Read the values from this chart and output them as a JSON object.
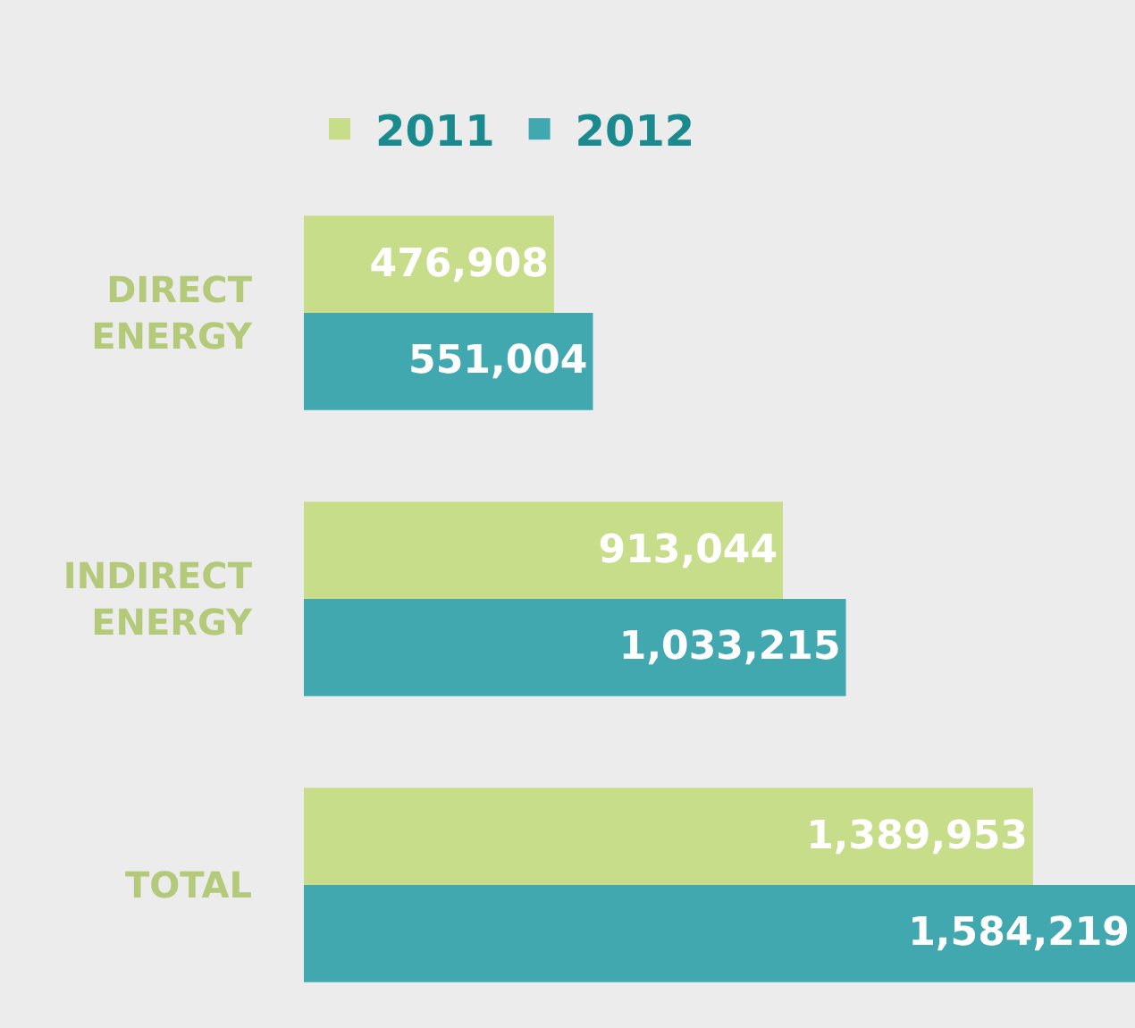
{
  "chart_data": {
    "type": "bar",
    "orientation": "horizontal",
    "categories": [
      "DIRECT ENERGY",
      "INDIRECT ENERGY",
      "TOTAL"
    ],
    "series": [
      {
        "name": "2011",
        "color": "#c8dd8a",
        "values": [
          476908,
          913044,
          1389953
        ],
        "value_labels": [
          "476,908",
          "913,044",
          "1,389,953"
        ]
      },
      {
        "name": "2012",
        "color": "#41a8b0",
        "values": [
          551004,
          1033215,
          1584219
        ],
        "value_labels": [
          "551,004",
          "1,033,215",
          "1,584,219"
        ]
      }
    ],
    "legend": "top left"
  }
}
